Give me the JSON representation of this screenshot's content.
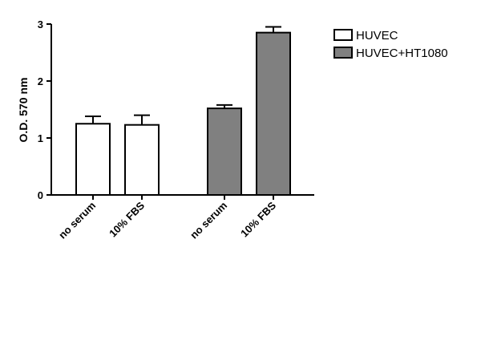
{
  "chart_data": {
    "type": "bar",
    "ylabel": "O.D. 570 nm",
    "xlabel": "",
    "ylim": [
      0,
      3
    ],
    "yticks": [
      0,
      1,
      2,
      3
    ],
    "grid": false,
    "legend_position": "top-right",
    "colors": {
      "HUVEC": "#ffffff",
      "HUVEC+HT1080": "#808080"
    },
    "series": [
      {
        "name": "HUVEC",
        "categories": [
          "no serum",
          "10% FBS"
        ],
        "values": [
          1.25,
          1.23
        ],
        "errors": [
          0.13,
          0.17
        ]
      },
      {
        "name": "HUVEC+HT1080",
        "categories": [
          "no serum",
          "10% FBS"
        ],
        "values": [
          1.52,
          2.85
        ],
        "errors": [
          0.06,
          0.1
        ]
      }
    ]
  }
}
